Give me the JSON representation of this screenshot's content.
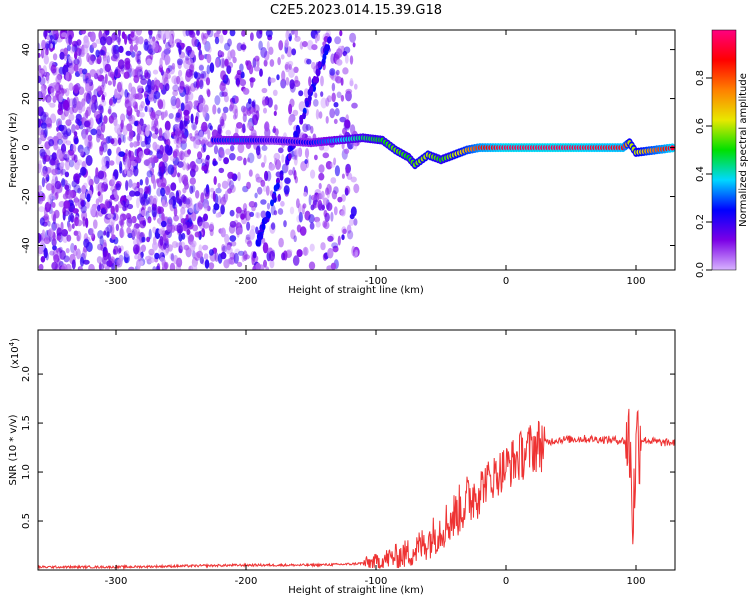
{
  "title": "C2E5.2023.014.15.39.G18",
  "chart_data": [
    {
      "type": "heatmap",
      "xlabel": "Height of straight line (km)",
      "ylabel": "Frequency (Hz)",
      "xlim": [
        -360,
        130
      ],
      "ylim": [
        -50,
        48
      ],
      "x_ticks": [
        -300,
        -200,
        -100,
        0,
        100
      ],
      "y_ticks": [
        -40,
        -20,
        0,
        20,
        40
      ],
      "colorbar": {
        "label": "Normalized spectral amplitude",
        "range": [
          0,
          1
        ],
        "ticks": [
          "0.0",
          "0.2",
          "0.4",
          "0.6",
          "0.8"
        ],
        "colors": [
          "#d8b4ff",
          "#7b00e6",
          "#0000ff",
          "#00d8ff",
          "#00e000",
          "#e8e800",
          "#ff8000",
          "#ff0000",
          "#ff0080"
        ]
      },
      "ridge": {
        "x": [
          -225,
          -205,
          -180,
          -150,
          -130,
          -110,
          -95,
          -85,
          -75,
          -70,
          -60,
          -50,
          -40,
          -30,
          -20,
          -10,
          0,
          50,
          90,
          95,
          100,
          130
        ],
        "y": [
          3,
          3,
          3,
          2,
          3,
          4,
          3,
          -1,
          -4,
          -7,
          -3,
          -5,
          -3,
          -1,
          0,
          0,
          0,
          0,
          0,
          2,
          -2,
          0
        ],
        "amplitude": [
          0.25,
          0.3,
          0.2,
          0.25,
          0.35,
          0.45,
          0.5,
          0.55,
          0.5,
          0.55,
          0.6,
          0.5,
          0.6,
          0.7,
          0.85,
          0.9,
          0.95,
          0.95,
          0.9,
          0.6,
          0.6,
          0.95
        ]
      }
    },
    {
      "type": "line",
      "xlabel": "Height of straight line (km)",
      "ylabel": "SNR (10 * v/v)",
      "y_multiplier": "(x10",
      "y_multiplier_exp": "4",
      "y_multiplier_close": ")",
      "xlim": [
        -360,
        130
      ],
      "ylim": [
        0,
        2.45
      ],
      "x_ticks": [
        -300,
        -200,
        -100,
        0,
        100
      ],
      "y_ticks": [
        "0.5",
        "1.0",
        "1.5",
        "2.0"
      ],
      "line_color": "#ee3333",
      "series": [
        {
          "x": [
            -360,
            -300,
            -250,
            -200,
            -150,
            -120,
            -100,
            -90,
            -80,
            -70,
            -60,
            -50,
            -40,
            -30,
            -20,
            -10,
            0,
            10,
            20,
            30,
            40,
            60,
            80,
            90,
            95,
            98,
            100,
            102,
            105,
            110,
            120,
            130
          ],
          "y": [
            0.03,
            0.03,
            0.04,
            0.05,
            0.05,
            0.06,
            0.08,
            0.12,
            0.15,
            0.2,
            0.3,
            0.42,
            0.55,
            0.7,
            0.85,
            0.95,
            1.05,
            1.15,
            1.25,
            1.3,
            1.33,
            1.34,
            1.33,
            1.32,
            1.3,
            0.5,
            1.3,
            1.35,
            1.33,
            1.32,
            1.3,
            1.3
          ]
        }
      ]
    }
  ]
}
